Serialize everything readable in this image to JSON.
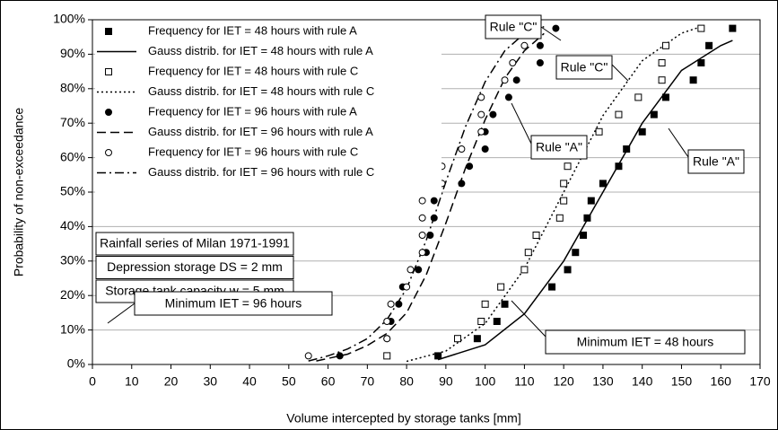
{
  "chart_data": {
    "type": "scatter-line",
    "xlabel": "Volume intercepted by storage tanks  [mm]",
    "ylabel": "Probability of non-exceedance",
    "xlim": [
      0,
      170
    ],
    "xticks": [
      0,
      10,
      20,
      30,
      40,
      50,
      60,
      70,
      80,
      90,
      100,
      110,
      120,
      130,
      140,
      150,
      160,
      170
    ],
    "ylim": [
      0,
      100
    ],
    "yticks": [
      {
        "value": 0,
        "label": "0%"
      },
      {
        "value": 10,
        "label": "10%"
      },
      {
        "value": 20,
        "label": "20%"
      },
      {
        "value": 30,
        "label": "30%"
      },
      {
        "value": 40,
        "label": "40%"
      },
      {
        "value": 50,
        "label": "50%"
      },
      {
        "value": 60,
        "label": "60%"
      },
      {
        "value": 70,
        "label": "70%"
      },
      {
        "value": 80,
        "label": "80%"
      },
      {
        "value": 90,
        "label": "90%"
      },
      {
        "value": 100,
        "label": "100%"
      }
    ],
    "grid": true,
    "legend": "upper left",
    "series": [
      {
        "name": "Frequency for IET = 48 hours with rule A",
        "color": "#000000",
        "marker": "filled-square",
        "x": [
          88,
          98,
          103,
          105,
          117,
          121,
          123,
          125,
          126,
          127,
          130,
          134,
          136,
          140,
          143,
          146,
          153,
          155,
          157,
          163
        ],
        "values": [
          2.5,
          7.5,
          12.5,
          17.5,
          22.5,
          27.5,
          32.5,
          37.5,
          42.5,
          47.5,
          52.5,
          57.5,
          62.5,
          67.5,
          72.5,
          77.5,
          82.5,
          87.5,
          92.5,
          97.5
        ]
      },
      {
        "name": "Gauss distrib. for IET = 48 hours with rule A",
        "color": "#000000",
        "dash": "solid",
        "x": [
          88,
          100,
          110,
          120,
          130,
          140,
          150,
          160,
          163
        ],
        "values": [
          1.4,
          5.7,
          14.7,
          30,
          50,
          70,
          85.3,
          92.5,
          94
        ]
      },
      {
        "name": "Frequency for IET = 48 hours with rule C",
        "color": "#000000",
        "marker": "open-square",
        "x": [
          75,
          93,
          99,
          100,
          104,
          110,
          111,
          113,
          119,
          120,
          120,
          121,
          125,
          129,
          134,
          139,
          145,
          145,
          146,
          155
        ],
        "values": [
          2.5,
          7.5,
          12.5,
          17.5,
          22.5,
          27.5,
          32.5,
          37.5,
          42.5,
          47.5,
          52.5,
          57.5,
          62.5,
          67.5,
          72.5,
          77.5,
          82.5,
          87.5,
          92.5,
          97.5
        ]
      },
      {
        "name": "Gauss distrib. for IET = 48 hours with rule C",
        "color": "#000000",
        "dash": "dotted",
        "x": [
          80,
          90,
          100,
          110,
          120,
          130,
          140,
          150,
          155
        ],
        "values": [
          0.9,
          3.9,
          11.9,
          27.8,
          50,
          72.2,
          88.1,
          96.1,
          98
        ]
      },
      {
        "name": "Frequency for IET = 96 hours with rule A",
        "color": "#000000",
        "marker": "filled-circle",
        "x": [
          63,
          75,
          76,
          78,
          79,
          83,
          85,
          86,
          87,
          87,
          94,
          96,
          100,
          100,
          102,
          106,
          108,
          114,
          114,
          118
        ],
        "values": [
          2.5,
          7.5,
          12.5,
          17.5,
          22.5,
          27.5,
          32.5,
          37.5,
          42.5,
          47.5,
          52.5,
          57.5,
          62.5,
          67.5,
          72.5,
          77.5,
          82.5,
          87.5,
          92.5,
          97.5
        ]
      },
      {
        "name": "Gauss distrib. for IET = 96 hours with rule A",
        "color": "#000000",
        "dash": "dashed",
        "x": [
          57,
          65,
          70,
          75,
          80,
          85,
          90,
          95,
          100,
          105,
          110,
          115
        ],
        "values": [
          1,
          3,
          5.5,
          9,
          15,
          26,
          41,
          57,
          71,
          83,
          91,
          96
        ]
      },
      {
        "name": "Frequency for IET = 96 hours with rule C",
        "color": "#000000",
        "marker": "open-circle",
        "x": [
          55,
          75,
          75,
          76,
          80,
          81,
          84,
          84,
          84,
          84,
          89,
          89,
          94,
          99,
          99,
          99,
          105,
          107,
          110,
          113
        ],
        "values": [
          2.5,
          7.5,
          12.5,
          17.5,
          22.5,
          27.5,
          32.5,
          37.5,
          42.5,
          47.5,
          52.5,
          57.5,
          62.5,
          67.5,
          72.5,
          77.5,
          82.5,
          87.5,
          92.5,
          97.5
        ]
      },
      {
        "name": "Gauss distrib. for IET = 96 hours with rule C",
        "color": "#000000",
        "dash": "dashdot",
        "x": [
          55,
          60,
          65,
          70,
          75,
          80,
          85,
          90,
          95,
          100,
          105,
          110,
          115
        ],
        "values": [
          1,
          2.5,
          4.5,
          7.5,
          13,
          22,
          36,
          53,
          69,
          82,
          91,
          96,
          98
        ]
      }
    ],
    "info_boxes": [
      "Rainfall series of Milan 1971-1991",
      "Depression storage DS = 2 mm",
      "Storage tank capacity w = 5 mm"
    ],
    "annotations": [
      "Rule \"C\"",
      "Rule \"C\"",
      "Rule \"A\"",
      "Rule \"A\"",
      "Minimum IET = 96 hours",
      "Minimum IET = 48 hours"
    ]
  }
}
